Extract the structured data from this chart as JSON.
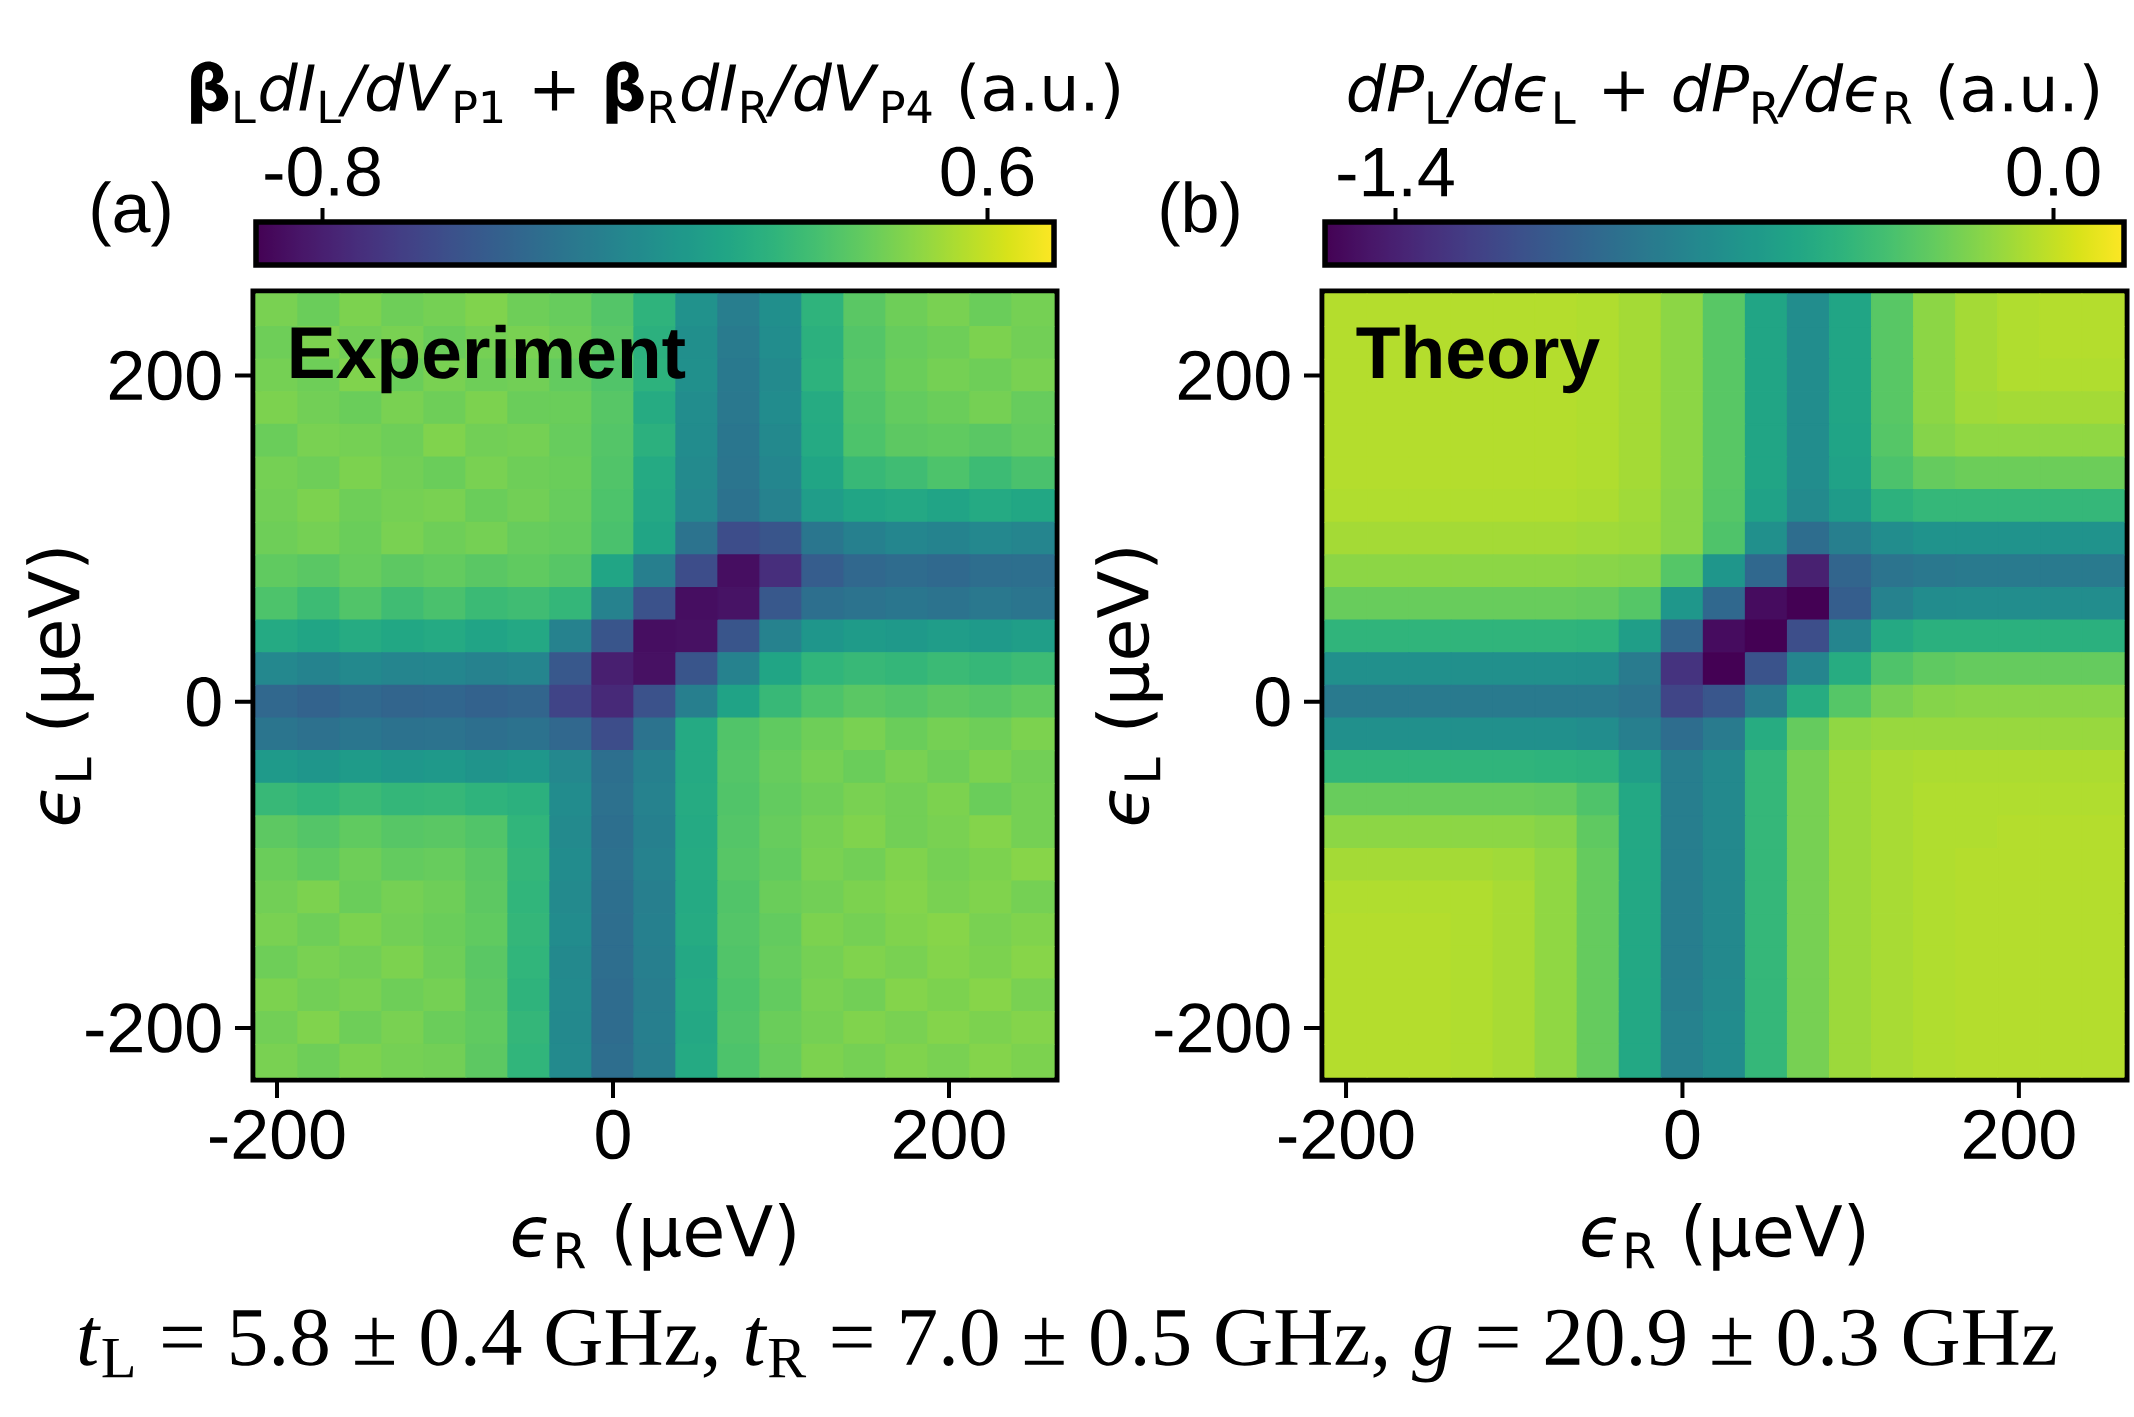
{
  "chart_data": [
    {
      "type": "heatmap",
      "clabel": "**β**$_{L}$*dI*$_{L}$*/dV*$_{P1}$ + **β**$_{R}$*dI*$_{R}$*/dV*$_{P4}$ (a.u.)",
      "annotations": [
        "(a)",
        "Experiment",
        "*t*$_{L}$ = 5.8 ± 0.4 GHz,  *t*$_{R}$ = 7.0 ± 0.5 GHz,  *g* = 20.9 ± 0.3 GHz"
      ],
      "xlabel": "*ϵ*$_{R}$ (μeV)",
      "ylabel": "*ϵ*$_{L}$ (μeV)",
      "categories": [
        "-200",
        null,
        null,
        null,
        null,
        null,
        null,
        null,
        "0",
        null,
        null,
        null,
        null,
        null,
        null,
        null,
        "200",
        null,
        null
      ],
      "y_categories": [
        null,
        null,
        "200",
        null,
        null,
        null,
        null,
        null,
        null,
        null,
        null,
        null,
        "0",
        null,
        null,
        null,
        null,
        null,
        null,
        null,
        null,
        null,
        "-200",
        null
      ],
      "clim": [
        -0.94,
        0.74
      ],
      "cticks": [
        -0.8,
        0.6
      ],
      "cells": [
        [
          0.4,
          0.36,
          0.41,
          0.37,
          0.39,
          0.42,
          0.37,
          0.35,
          0.29,
          0.15,
          -0.09,
          -0.23,
          -0.11,
          0.15,
          0.31,
          0.37,
          0.4,
          0.36,
          0.39
        ],
        [
          0.37,
          0.41,
          0.38,
          0.4,
          0.36,
          0.39,
          0.4,
          0.37,
          0.31,
          0.13,
          -0.11,
          -0.25,
          -0.12,
          0.13,
          0.29,
          0.35,
          0.37,
          0.41,
          0.38
        ],
        [
          0.39,
          0.37,
          0.42,
          0.36,
          0.4,
          0.37,
          0.38,
          0.34,
          0.28,
          0.14,
          -0.1,
          -0.26,
          -0.14,
          0.14,
          0.3,
          0.36,
          0.39,
          0.37,
          0.4
        ],
        [
          0.41,
          0.38,
          0.36,
          0.4,
          0.37,
          0.41,
          0.36,
          0.36,
          0.3,
          0.09,
          -0.12,
          -0.27,
          -0.13,
          0.09,
          0.28,
          0.34,
          0.36,
          0.39,
          0.35
        ],
        [
          0.36,
          0.4,
          0.39,
          0.37,
          0.42,
          0.38,
          0.39,
          0.35,
          0.29,
          0.13,
          -0.13,
          -0.28,
          -0.15,
          0.08,
          0.27,
          0.32,
          0.33,
          0.31,
          0.34
        ],
        [
          0.39,
          0.37,
          0.41,
          0.38,
          0.36,
          0.4,
          0.37,
          0.36,
          0.28,
          0.08,
          -0.14,
          -0.29,
          -0.17,
          0.05,
          0.19,
          0.22,
          0.27,
          0.21,
          0.26
        ],
        [
          0.38,
          0.41,
          0.37,
          0.39,
          0.4,
          0.36,
          0.38,
          0.35,
          0.27,
          0.07,
          -0.16,
          -0.31,
          -0.2,
          -0.01,
          0.05,
          0.07,
          0.04,
          0.08,
          0.06
        ],
        [
          0.37,
          0.39,
          0.36,
          0.4,
          0.37,
          0.39,
          0.35,
          0.34,
          0.26,
          0.05,
          -0.3,
          -0.55,
          -0.5,
          -0.28,
          -0.21,
          -0.17,
          -0.19,
          -0.16,
          -0.18
        ],
        [
          0.33,
          0.31,
          0.35,
          0.32,
          0.34,
          0.31,
          0.33,
          0.3,
          0.05,
          -0.22,
          -0.55,
          -0.88,
          -0.72,
          -0.45,
          -0.38,
          -0.35,
          -0.37,
          -0.34,
          -0.33
        ],
        [
          0.27,
          0.21,
          0.28,
          0.22,
          0.26,
          0.2,
          0.22,
          0.17,
          -0.2,
          -0.52,
          -0.88,
          -0.86,
          -0.48,
          -0.33,
          -0.3,
          -0.28,
          -0.3,
          -0.27,
          -0.29
        ],
        [
          0.08,
          0.05,
          0.09,
          0.06,
          0.08,
          0.04,
          0.07,
          -0.2,
          -0.5,
          -0.88,
          -0.87,
          -0.5,
          -0.2,
          -0.06,
          -0.02,
          -0.04,
          -0.01,
          -0.03,
          0.0
        ],
        [
          -0.16,
          -0.19,
          -0.15,
          -0.18,
          -0.17,
          -0.2,
          -0.18,
          -0.48,
          -0.8,
          -0.87,
          -0.5,
          -0.2,
          0.05,
          0.16,
          0.19,
          0.17,
          0.2,
          0.18,
          0.21
        ],
        [
          -0.38,
          -0.41,
          -0.37,
          -0.4,
          -0.39,
          -0.42,
          -0.4,
          -0.6,
          -0.75,
          -0.52,
          -0.22,
          0.03,
          0.19,
          0.27,
          0.31,
          0.29,
          0.32,
          0.3,
          0.33
        ],
        [
          -0.29,
          -0.32,
          -0.28,
          -0.31,
          -0.3,
          -0.33,
          -0.31,
          -0.38,
          -0.55,
          -0.3,
          0.08,
          0.28,
          0.33,
          0.37,
          0.4,
          0.36,
          0.39,
          0.37,
          0.41
        ],
        [
          -0.03,
          -0.06,
          -0.02,
          -0.05,
          -0.04,
          -0.07,
          -0.05,
          -0.16,
          -0.33,
          -0.21,
          0.08,
          0.29,
          0.35,
          0.39,
          0.36,
          0.4,
          0.37,
          0.41,
          0.38
        ],
        [
          0.19,
          0.16,
          0.2,
          0.17,
          0.18,
          0.15,
          0.13,
          -0.13,
          -0.32,
          -0.2,
          0.09,
          0.28,
          0.34,
          0.37,
          0.4,
          0.38,
          0.41,
          0.36,
          0.39
        ],
        [
          0.32,
          0.29,
          0.33,
          0.3,
          0.31,
          0.28,
          0.16,
          -0.14,
          -0.33,
          -0.21,
          0.08,
          0.29,
          0.35,
          0.39,
          0.42,
          0.38,
          0.4,
          0.43,
          0.39
        ],
        [
          0.36,
          0.33,
          0.37,
          0.34,
          0.35,
          0.31,
          0.17,
          -0.13,
          -0.32,
          -0.2,
          0.09,
          0.3,
          0.34,
          0.4,
          0.38,
          0.42,
          0.39,
          0.41,
          0.44
        ],
        [
          0.38,
          0.41,
          0.36,
          0.39,
          0.37,
          0.32,
          0.16,
          -0.14,
          -0.33,
          -0.22,
          0.08,
          0.28,
          0.36,
          0.38,
          0.41,
          0.43,
          0.4,
          0.42,
          0.39
        ],
        [
          0.4,
          0.37,
          0.41,
          0.38,
          0.36,
          0.33,
          0.17,
          -0.13,
          -0.34,
          -0.21,
          0.09,
          0.29,
          0.34,
          0.41,
          0.39,
          0.42,
          0.44,
          0.4,
          0.42
        ],
        [
          0.37,
          0.4,
          0.38,
          0.41,
          0.37,
          0.31,
          0.16,
          -0.15,
          -0.34,
          -0.22,
          0.07,
          0.28,
          0.35,
          0.39,
          0.42,
          0.4,
          0.43,
          0.41,
          0.44
        ],
        [
          0.41,
          0.38,
          0.4,
          0.37,
          0.39,
          0.32,
          0.15,
          -0.14,
          -0.35,
          -0.23,
          0.08,
          0.27,
          0.34,
          0.4,
          0.38,
          0.43,
          0.41,
          0.44,
          0.4
        ],
        [
          0.38,
          0.42,
          0.37,
          0.4,
          0.36,
          0.33,
          0.17,
          -0.15,
          -0.35,
          -0.22,
          0.07,
          0.28,
          0.36,
          0.39,
          0.42,
          0.4,
          0.43,
          0.41,
          0.43
        ],
        [
          0.4,
          0.37,
          0.41,
          0.39,
          0.38,
          0.32,
          0.16,
          -0.14,
          -0.34,
          -0.23,
          0.08,
          0.27,
          0.35,
          0.41,
          0.39,
          0.42,
          0.4,
          0.43,
          0.41
        ]
      ]
    },
    {
      "type": "heatmap",
      "clabel": "*dP*$_{L}$*/dϵ*$_{L}$ + *dP*$_{R}$*/dϵ*$_{R}$ (a.u.)",
      "annotations": [
        "(b)",
        "Theory"
      ],
      "xlabel": "*ϵ*$_{R}$ (μeV)",
      "ylabel": "*ϵ*$_{L}$ (μeV)",
      "categories": [
        "-200",
        null,
        null,
        null,
        null,
        null,
        null,
        null,
        "0",
        null,
        null,
        null,
        null,
        null,
        null,
        null,
        "200",
        null,
        null
      ],
      "y_categories": [
        null,
        null,
        "200",
        null,
        null,
        null,
        null,
        null,
        null,
        null,
        null,
        null,
        "0",
        null,
        null,
        null,
        null,
        null,
        null,
        null,
        null,
        null,
        "-200",
        null
      ],
      "clim": [
        -1.55,
        0.15
      ],
      "cticks": [
        -1.4,
        {
          "value": 0,
          "label": "0.0"
        }
      ],
      "cells": [
        [
          -0.04,
          -0.04,
          -0.04,
          -0.04,
          -0.04,
          -0.04,
          -0.05,
          -0.08,
          -0.14,
          -0.29,
          -0.55,
          -0.72,
          -0.55,
          -0.29,
          -0.14,
          -0.08,
          -0.05,
          -0.04,
          -0.04
        ],
        [
          -0.04,
          -0.04,
          -0.04,
          -0.04,
          -0.04,
          -0.04,
          -0.05,
          -0.08,
          -0.14,
          -0.29,
          -0.55,
          -0.72,
          -0.55,
          -0.29,
          -0.14,
          -0.08,
          -0.05,
          -0.04,
          -0.04
        ],
        [
          -0.04,
          -0.04,
          -0.04,
          -0.04,
          -0.04,
          -0.04,
          -0.05,
          -0.08,
          -0.14,
          -0.29,
          -0.55,
          -0.72,
          -0.55,
          -0.29,
          -0.14,
          -0.08,
          -0.05,
          -0.05,
          -0.05
        ],
        [
          -0.04,
          -0.04,
          -0.04,
          -0.04,
          -0.04,
          -0.04,
          -0.05,
          -0.08,
          -0.14,
          -0.29,
          -0.55,
          -0.72,
          -0.55,
          -0.29,
          -0.14,
          -0.09,
          -0.08,
          -0.08,
          -0.08
        ],
        [
          -0.04,
          -0.04,
          -0.04,
          -0.04,
          -0.04,
          -0.04,
          -0.05,
          -0.08,
          -0.14,
          -0.29,
          -0.55,
          -0.72,
          -0.56,
          -0.3,
          -0.16,
          -0.13,
          -0.13,
          -0.13,
          -0.13
        ],
        [
          -0.04,
          -0.04,
          -0.04,
          -0.04,
          -0.04,
          -0.04,
          -0.05,
          -0.08,
          -0.14,
          -0.29,
          -0.55,
          -0.72,
          -0.57,
          -0.33,
          -0.25,
          -0.23,
          -0.23,
          -0.23,
          -0.23
        ],
        [
          -0.05,
          -0.05,
          -0.05,
          -0.05,
          -0.05,
          -0.05,
          -0.06,
          -0.09,
          -0.15,
          -0.3,
          -0.57,
          -0.74,
          -0.62,
          -0.46,
          -0.42,
          -0.42,
          -0.42,
          -0.42,
          -0.42
        ],
        [
          -0.08,
          -0.08,
          -0.08,
          -0.08,
          -0.08,
          -0.08,
          -0.09,
          -0.1,
          -0.15,
          -0.32,
          -0.7,
          -0.95,
          -0.82,
          -0.72,
          -0.68,
          -0.68,
          -0.68,
          -0.68,
          -0.68
        ],
        [
          -0.14,
          -0.14,
          -0.14,
          -0.14,
          -0.14,
          -0.14,
          -0.15,
          -0.16,
          -0.3,
          -0.66,
          -0.98,
          -1.4,
          -1.0,
          -0.9,
          -0.87,
          -0.86,
          -0.86,
          -0.86,
          -0.86
        ],
        [
          -0.24,
          -0.24,
          -0.24,
          -0.24,
          -0.24,
          -0.24,
          -0.25,
          -0.3,
          -0.65,
          -0.98,
          -1.5,
          -1.55,
          -1.05,
          -0.8,
          -0.73,
          -0.72,
          -0.72,
          -0.72,
          -0.72
        ],
        [
          -0.44,
          -0.44,
          -0.44,
          -0.44,
          -0.44,
          -0.44,
          -0.45,
          -0.6,
          -1.0,
          -1.5,
          -1.55,
          -1.15,
          -0.78,
          -0.52,
          -0.47,
          -0.47,
          -0.47,
          -0.47,
          -0.47
        ],
        [
          -0.7,
          -0.7,
          -0.7,
          -0.7,
          -0.7,
          -0.7,
          -0.71,
          -0.85,
          -1.3,
          -1.55,
          -1.12,
          -0.78,
          -0.5,
          -0.32,
          -0.27,
          -0.25,
          -0.25,
          -0.25,
          -0.25
        ],
        [
          -0.86,
          -0.86,
          -0.86,
          -0.86,
          -0.86,
          -0.86,
          -0.86,
          -0.9,
          -1.2,
          -1.1,
          -0.85,
          -0.5,
          -0.3,
          -0.2,
          -0.16,
          -0.15,
          -0.15,
          -0.15,
          -0.15
        ],
        [
          -0.7,
          -0.7,
          -0.7,
          -0.7,
          -0.7,
          -0.7,
          -0.72,
          -0.82,
          -0.95,
          -0.85,
          -0.5,
          -0.25,
          -0.13,
          -0.11,
          -0.11,
          -0.11,
          -0.11,
          -0.11,
          -0.11
        ],
        [
          -0.44,
          -0.44,
          -0.44,
          -0.44,
          -0.44,
          -0.45,
          -0.46,
          -0.6,
          -0.83,
          -0.75,
          -0.42,
          -0.2,
          -0.1,
          -0.07,
          -0.06,
          -0.06,
          -0.06,
          -0.06,
          -0.06
        ],
        [
          -0.24,
          -0.24,
          -0.24,
          -0.24,
          -0.24,
          -0.25,
          -0.32,
          -0.53,
          -0.83,
          -0.75,
          -0.42,
          -0.2,
          -0.1,
          -0.07,
          -0.05,
          -0.05,
          -0.05,
          -0.05,
          -0.05
        ],
        [
          -0.14,
          -0.14,
          -0.14,
          -0.14,
          -0.14,
          -0.16,
          -0.27,
          -0.53,
          -0.83,
          -0.75,
          -0.42,
          -0.2,
          -0.1,
          -0.07,
          -0.05,
          -0.05,
          -0.04,
          -0.04,
          -0.04
        ],
        [
          -0.08,
          -0.08,
          -0.08,
          -0.08,
          -0.09,
          -0.13,
          -0.25,
          -0.53,
          -0.83,
          -0.75,
          -0.42,
          -0.2,
          -0.1,
          -0.07,
          -0.05,
          -0.04,
          -0.04,
          -0.04,
          -0.04
        ],
        [
          -0.05,
          -0.05,
          -0.05,
          -0.05,
          -0.07,
          -0.13,
          -0.25,
          -0.53,
          -0.83,
          -0.75,
          -0.42,
          -0.2,
          -0.1,
          -0.07,
          -0.05,
          -0.04,
          -0.04,
          -0.04,
          -0.04
        ],
        [
          -0.04,
          -0.04,
          -0.04,
          -0.05,
          -0.07,
          -0.13,
          -0.25,
          -0.53,
          -0.83,
          -0.75,
          -0.42,
          -0.2,
          -0.1,
          -0.07,
          -0.05,
          -0.04,
          -0.04,
          -0.04,
          -0.04
        ],
        [
          -0.04,
          -0.04,
          -0.04,
          -0.05,
          -0.07,
          -0.13,
          -0.25,
          -0.53,
          -0.83,
          -0.75,
          -0.42,
          -0.2,
          -0.1,
          -0.07,
          -0.05,
          -0.04,
          -0.04,
          -0.04,
          -0.04
        ],
        [
          -0.04,
          -0.04,
          -0.04,
          -0.05,
          -0.07,
          -0.13,
          -0.25,
          -0.53,
          -0.82,
          -0.74,
          -0.42,
          -0.2,
          -0.1,
          -0.07,
          -0.05,
          -0.04,
          -0.04,
          -0.04,
          -0.04
        ],
        [
          -0.04,
          -0.04,
          -0.04,
          -0.05,
          -0.07,
          -0.13,
          -0.25,
          -0.53,
          -0.8,
          -0.73,
          -0.42,
          -0.2,
          -0.1,
          -0.07,
          -0.05,
          -0.04,
          -0.04,
          -0.04,
          -0.04
        ],
        [
          -0.04,
          -0.04,
          -0.04,
          -0.05,
          -0.07,
          -0.13,
          -0.25,
          -0.53,
          -0.8,
          -0.73,
          -0.42,
          -0.2,
          -0.1,
          -0.07,
          -0.05,
          -0.04,
          -0.04,
          -0.04,
          -0.04
        ]
      ]
    }
  ]
}
